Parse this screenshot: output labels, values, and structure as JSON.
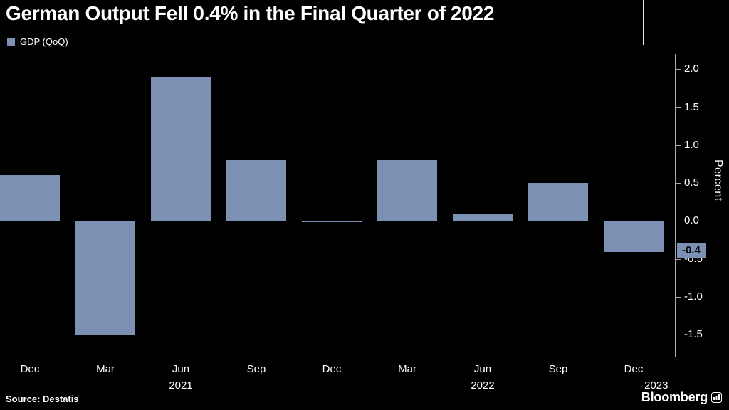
{
  "title": "German Output Fell 0.4% in the Final Quarter of 2022",
  "legend": {
    "label": "GDP (QoQ)"
  },
  "source": "Source: Destatis",
  "brand": {
    "name": "Bloomberg"
  },
  "chart_data": {
    "type": "bar",
    "title": "German Output Fell 0.4% in the Final Quarter of 2022",
    "series_name": "GDP (QoQ)",
    "categories": [
      "Dec",
      "Mar",
      "Jun",
      "Sep",
      "Dec",
      "Mar",
      "Jun",
      "Sep",
      "Dec"
    ],
    "values": [
      0.6,
      -1.5,
      1.9,
      0.8,
      0.0,
      0.8,
      0.1,
      0.5,
      -0.4
    ],
    "year_labels": [
      {
        "text": "2021",
        "index": 2
      },
      {
        "text": "2022",
        "index": 6
      },
      {
        "text": "2023",
        "index": 8.3
      }
    ],
    "year_separators": [
      4,
      8
    ],
    "yticks": [
      2.0,
      1.5,
      1.0,
      0.5,
      0.0,
      -0.5,
      -1.0,
      -1.5
    ],
    "ylim": [
      -1.78,
      2.2
    ],
    "ylabel": "Percent",
    "xlabel": "",
    "grid": false,
    "legend_position": "top-left",
    "axis_side": "right",
    "bar_color": "#7b90b2",
    "background_color": "#000000",
    "last_value": -0.4,
    "last_value_label": "-0.4"
  }
}
